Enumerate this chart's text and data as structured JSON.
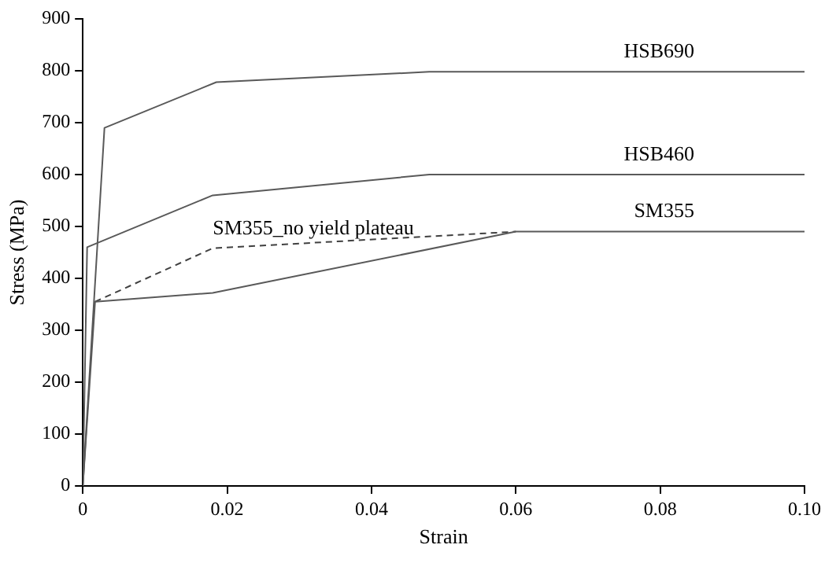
{
  "chart_data": {
    "type": "line",
    "xlabel": "Strain",
    "ylabel": "Stress (MPa)",
    "xlim": [
      0,
      0.1
    ],
    "xticks": [
      0,
      0.02,
      0.04,
      0.06,
      0.08,
      {
        "value": 0.1,
        "label": "0.10"
      }
    ],
    "ylim": [
      0,
      900
    ],
    "yticks": [
      0,
      100,
      200,
      300,
      400,
      500,
      600,
      700,
      800,
      900
    ],
    "grid": false,
    "legend": false,
    "marker": "none",
    "series": [
      {
        "name": "HSB690",
        "color": "#595959",
        "x": [
          0,
          0.003,
          0.0185,
          0.048,
          0.1
        ],
        "values": [
          0,
          690,
          778,
          798,
          798
        ]
      },
      {
        "name": "HSB460",
        "color": "#595959",
        "x": [
          0,
          0.0006,
          0.018,
          0.048,
          0.1
        ],
        "values": [
          0,
          460,
          560,
          600,
          600
        ]
      },
      {
        "name": "SM355",
        "color": "#595959",
        "x": [
          0,
          0.0017,
          0.018,
          0.06,
          0.1
        ],
        "values": [
          0,
          355,
          372,
          490,
          490
        ]
      },
      {
        "name": "SM355_no yield plateau",
        "color": "#404040",
        "line_style": "dashed",
        "x": [
          0.0017,
          0.018,
          0.06
        ],
        "values": [
          355,
          458,
          490
        ]
      }
    ]
  }
}
